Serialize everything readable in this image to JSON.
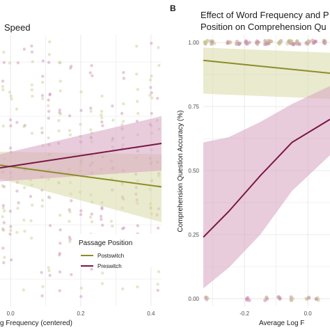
{
  "colors": {
    "postswitch": "#8c8c2a",
    "postswitch_band": "#d9d9a6",
    "preswitch": "#7a1646",
    "preswitch_band": "#d6a3c0",
    "pts_post": "#c6c98a",
    "pts_pre": "#c98aae",
    "grid": "#e3e3e3"
  },
  "chart_data": [
    {
      "panel": "A",
      "type": "scatter",
      "title": "Speed",
      "xlabel": "g Frequency (centered)",
      "ylabel": "",
      "x_ticks": [
        "0.0",
        "0.2",
        "0.4"
      ],
      "xlim": [
        -0.03,
        0.43
      ],
      "ylim": [
        0,
        1
      ],
      "grid": true,
      "legend": {
        "title": "Passage Position",
        "position": "bottom-right",
        "entries": [
          "Postswitch",
          "Preswitch"
        ]
      },
      "series": [
        {
          "name": "Postswitch",
          "x": [
            -0.03,
            0.43
          ],
          "y": [
            0.52,
            0.44
          ],
          "band_lower": [
            0.47,
            0.31
          ],
          "band_upper": [
            0.57,
            0.56
          ]
        },
        {
          "name": "Preswitch",
          "x": [
            -0.03,
            0.43
          ],
          "y": [
            0.51,
            0.6
          ],
          "band_lower": [
            0.46,
            0.5
          ],
          "band_upper": [
            0.56,
            0.7
          ]
        }
      ]
    },
    {
      "panel": "B",
      "type": "line",
      "panel_label": "B",
      "title": [
        "Effect of Word Frequency and P",
        "Position on Comprehension Qu"
      ],
      "xlabel": "Average Log F",
      "ylabel": "Comprehension Question Accuracy (%)",
      "x_ticks": [
        "-0.2",
        "0.0"
      ],
      "y_ticks": [
        "0.00",
        "0.25",
        "0.50",
        "0.75",
        "1.00"
      ],
      "xlim": [
        -0.33,
        0.07
      ],
      "ylim": [
        -0.03,
        1.03
      ],
      "grid": true,
      "series": [
        {
          "name": "Postswitch",
          "x": [
            -0.33,
            0.07
          ],
          "y": [
            0.93,
            0.88
          ],
          "band_lower": [
            0.8,
            0.78
          ],
          "band_upper": [
            0.98,
            0.96
          ]
        },
        {
          "name": "Preswitch",
          "x": [
            -0.33,
            -0.25,
            -0.15,
            -0.05,
            0.07
          ],
          "y": [
            0.24,
            0.34,
            0.48,
            0.61,
            0.7
          ],
          "band_lower": [
            0.04,
            0.12,
            0.25,
            0.42,
            0.56
          ],
          "band_upper": [
            0.61,
            0.63,
            0.69,
            0.76,
            0.83
          ]
        }
      ]
    }
  ]
}
